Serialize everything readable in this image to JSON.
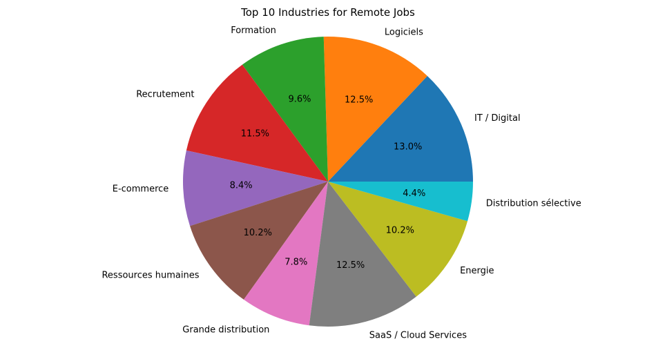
{
  "chart_data": {
    "type": "pie",
    "title": "Top 10 Industries for Remote Jobs",
    "start_angle_deg": 0,
    "direction": "counterclockwise",
    "slices": [
      {
        "label": "IT / Digital",
        "value": 13.0,
        "pct_label": "13.0%",
        "color": "#1f77b4"
      },
      {
        "label": "Logiciels",
        "value": 12.5,
        "pct_label": "12.5%",
        "color": "#ff7f0e"
      },
      {
        "label": "Formation",
        "value": 9.6,
        "pct_label": "9.6%",
        "color": "#2ca02c"
      },
      {
        "label": "Recrutement",
        "value": 11.5,
        "pct_label": "11.5%",
        "color": "#d62728"
      },
      {
        "label": "E-commerce",
        "value": 8.4,
        "pct_label": "8.4%",
        "color": "#9467bd"
      },
      {
        "label": "Ressources humaines",
        "value": 10.2,
        "pct_label": "10.2%",
        "color": "#8c564b"
      },
      {
        "label": "Grande distribution",
        "value": 7.8,
        "pct_label": "7.8%",
        "color": "#e377c2"
      },
      {
        "label": "SaaS / Cloud Services",
        "value": 12.5,
        "pct_label": "12.5%",
        "color": "#7f7f7f"
      },
      {
        "label": "Energie",
        "value": 10.2,
        "pct_label": "10.2%",
        "color": "#bcbd22"
      },
      {
        "label": "Distribution sélective",
        "value": 4.4,
        "pct_label": "4.4%",
        "color": "#17becf"
      }
    ]
  }
}
